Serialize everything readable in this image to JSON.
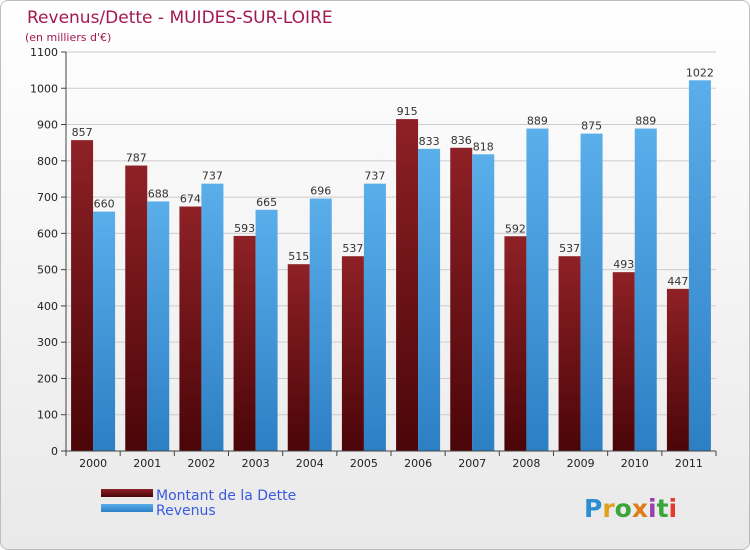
{
  "chart_data": {
    "type": "bar",
    "title": "Revenus/Dette - MUIDES-SUR-LOIRE",
    "subtitle": "(en milliers d'€)",
    "xlabel": "",
    "ylabel": "",
    "ylim": [
      0,
      1100
    ],
    "y_ticks": [
      0,
      100,
      200,
      300,
      400,
      500,
      600,
      700,
      800,
      900,
      1000,
      1100
    ],
    "grid": true,
    "legend_position": "bottom-left",
    "categories": [
      "2000",
      "2001",
      "2002",
      "2003",
      "2004",
      "2005",
      "2006",
      "2007",
      "2008",
      "2009",
      "2010",
      "2011"
    ],
    "series": [
      {
        "name": "Montant de la Dette",
        "color": "#7a1418",
        "values": [
          857,
          787,
          674,
          593,
          515,
          537,
          915,
          836,
          592,
          537,
          493,
          447
        ]
      },
      {
        "name": "Revenus",
        "color": "#4fa6e6",
        "values": [
          660,
          688,
          737,
          665,
          696,
          737,
          833,
          818,
          889,
          875,
          889,
          1022
        ]
      }
    ]
  },
  "logo": {
    "letters": [
      "P",
      "r",
      "o",
      "x",
      "i",
      "t",
      "i"
    ],
    "colors": [
      "#2d8fd0",
      "#e3a020",
      "#3aa63a",
      "#e07b17",
      "#9b3fb0",
      "#3aa63a",
      "#e33a2a"
    ]
  }
}
